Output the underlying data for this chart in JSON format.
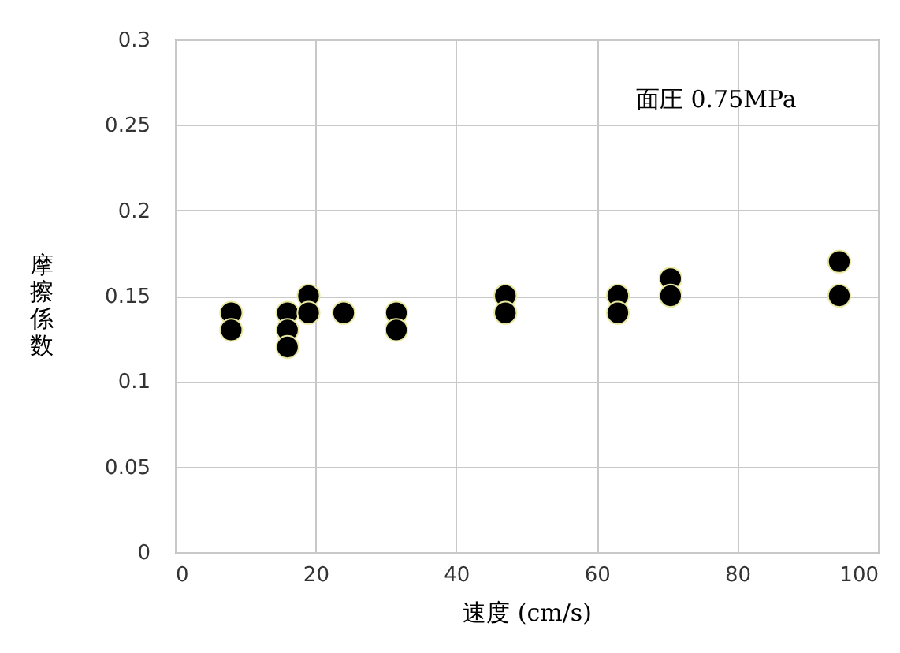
{
  "chart_data": {
    "type": "scatter",
    "xlabel": "速度 (cm/s)",
    "ylabel": "摩擦係数",
    "annotations": [
      "面圧 0.75MPa"
    ],
    "x": [
      8,
      8,
      16,
      16,
      16,
      19,
      19,
      24,
      31.5,
      31.5,
      47,
      47,
      63,
      63,
      70.5,
      70.5,
      94.5,
      94.5
    ],
    "series": [
      {
        "color": "#000000",
        "values": [
          0.14,
          0.13,
          0.14,
          0.13,
          0.12,
          0.15,
          0.14,
          0.14,
          0.14,
          0.13,
          0.15,
          0.14,
          0.15,
          0.14,
          0.16,
          0.15,
          0.17,
          0.15
        ]
      }
    ],
    "xlim": [
      0,
      100
    ],
    "xticks": [
      0,
      20,
      40,
      60,
      80,
      100
    ],
    "ylim": [
      0,
      0.3
    ],
    "yticks": [
      0,
      0.05,
      0.1,
      0.15,
      0.2,
      0.25,
      0.3
    ],
    "grid": true,
    "marker": "circle"
  }
}
